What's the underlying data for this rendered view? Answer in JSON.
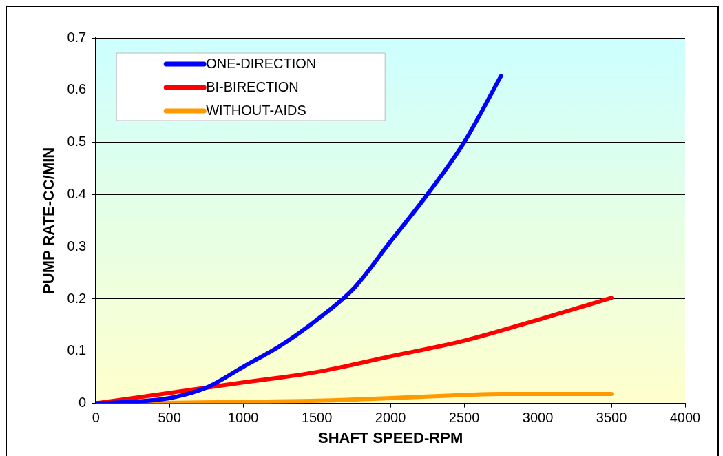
{
  "chart_data": {
    "type": "line",
    "xlabel": "SHAFT SPEED-RPM",
    "ylabel": "PUMP RATE-CC/MIN",
    "xlim": [
      0,
      4000
    ],
    "xticks": [
      0,
      500,
      1000,
      1500,
      2000,
      2500,
      3000,
      3500,
      4000
    ],
    "ylim": [
      0,
      0.7
    ],
    "yticks": [
      0,
      0.1,
      0.2,
      0.3,
      0.4,
      0.5,
      0.6,
      0.7
    ],
    "grid": "y",
    "legend": "top left",
    "marker": "none",
    "line_style": "solid",
    "series": [
      {
        "name": "ONE-DIRECTION",
        "color": "#0000ff",
        "x": [
          0,
          250,
          500,
          750,
          1000,
          1250,
          1500,
          1750,
          2000,
          2250,
          2500,
          2750
        ],
        "values": [
          0,
          0.003,
          0.01,
          0.03,
          0.07,
          0.11,
          0.16,
          0.22,
          0.31,
          0.4,
          0.5,
          0.627
        ]
      },
      {
        "name": "BI-BIRECTION",
        "color": "#ff0000",
        "x": [
          0,
          500,
          1000,
          1500,
          2000,
          2500,
          3000,
          3500
        ],
        "values": [
          0,
          0.02,
          0.04,
          0.06,
          0.09,
          0.12,
          0.16,
          0.202
        ]
      },
      {
        "name": "WITHOUT-AIDS",
        "color": "#ff9900",
        "x": [
          0,
          500,
          1000,
          1500,
          2000,
          2500,
          2750,
          3000,
          3500
        ],
        "values": [
          0,
          0.001,
          0.003,
          0.005,
          0.01,
          0.016,
          0.018,
          0.018,
          0.018
        ]
      }
    ]
  }
}
